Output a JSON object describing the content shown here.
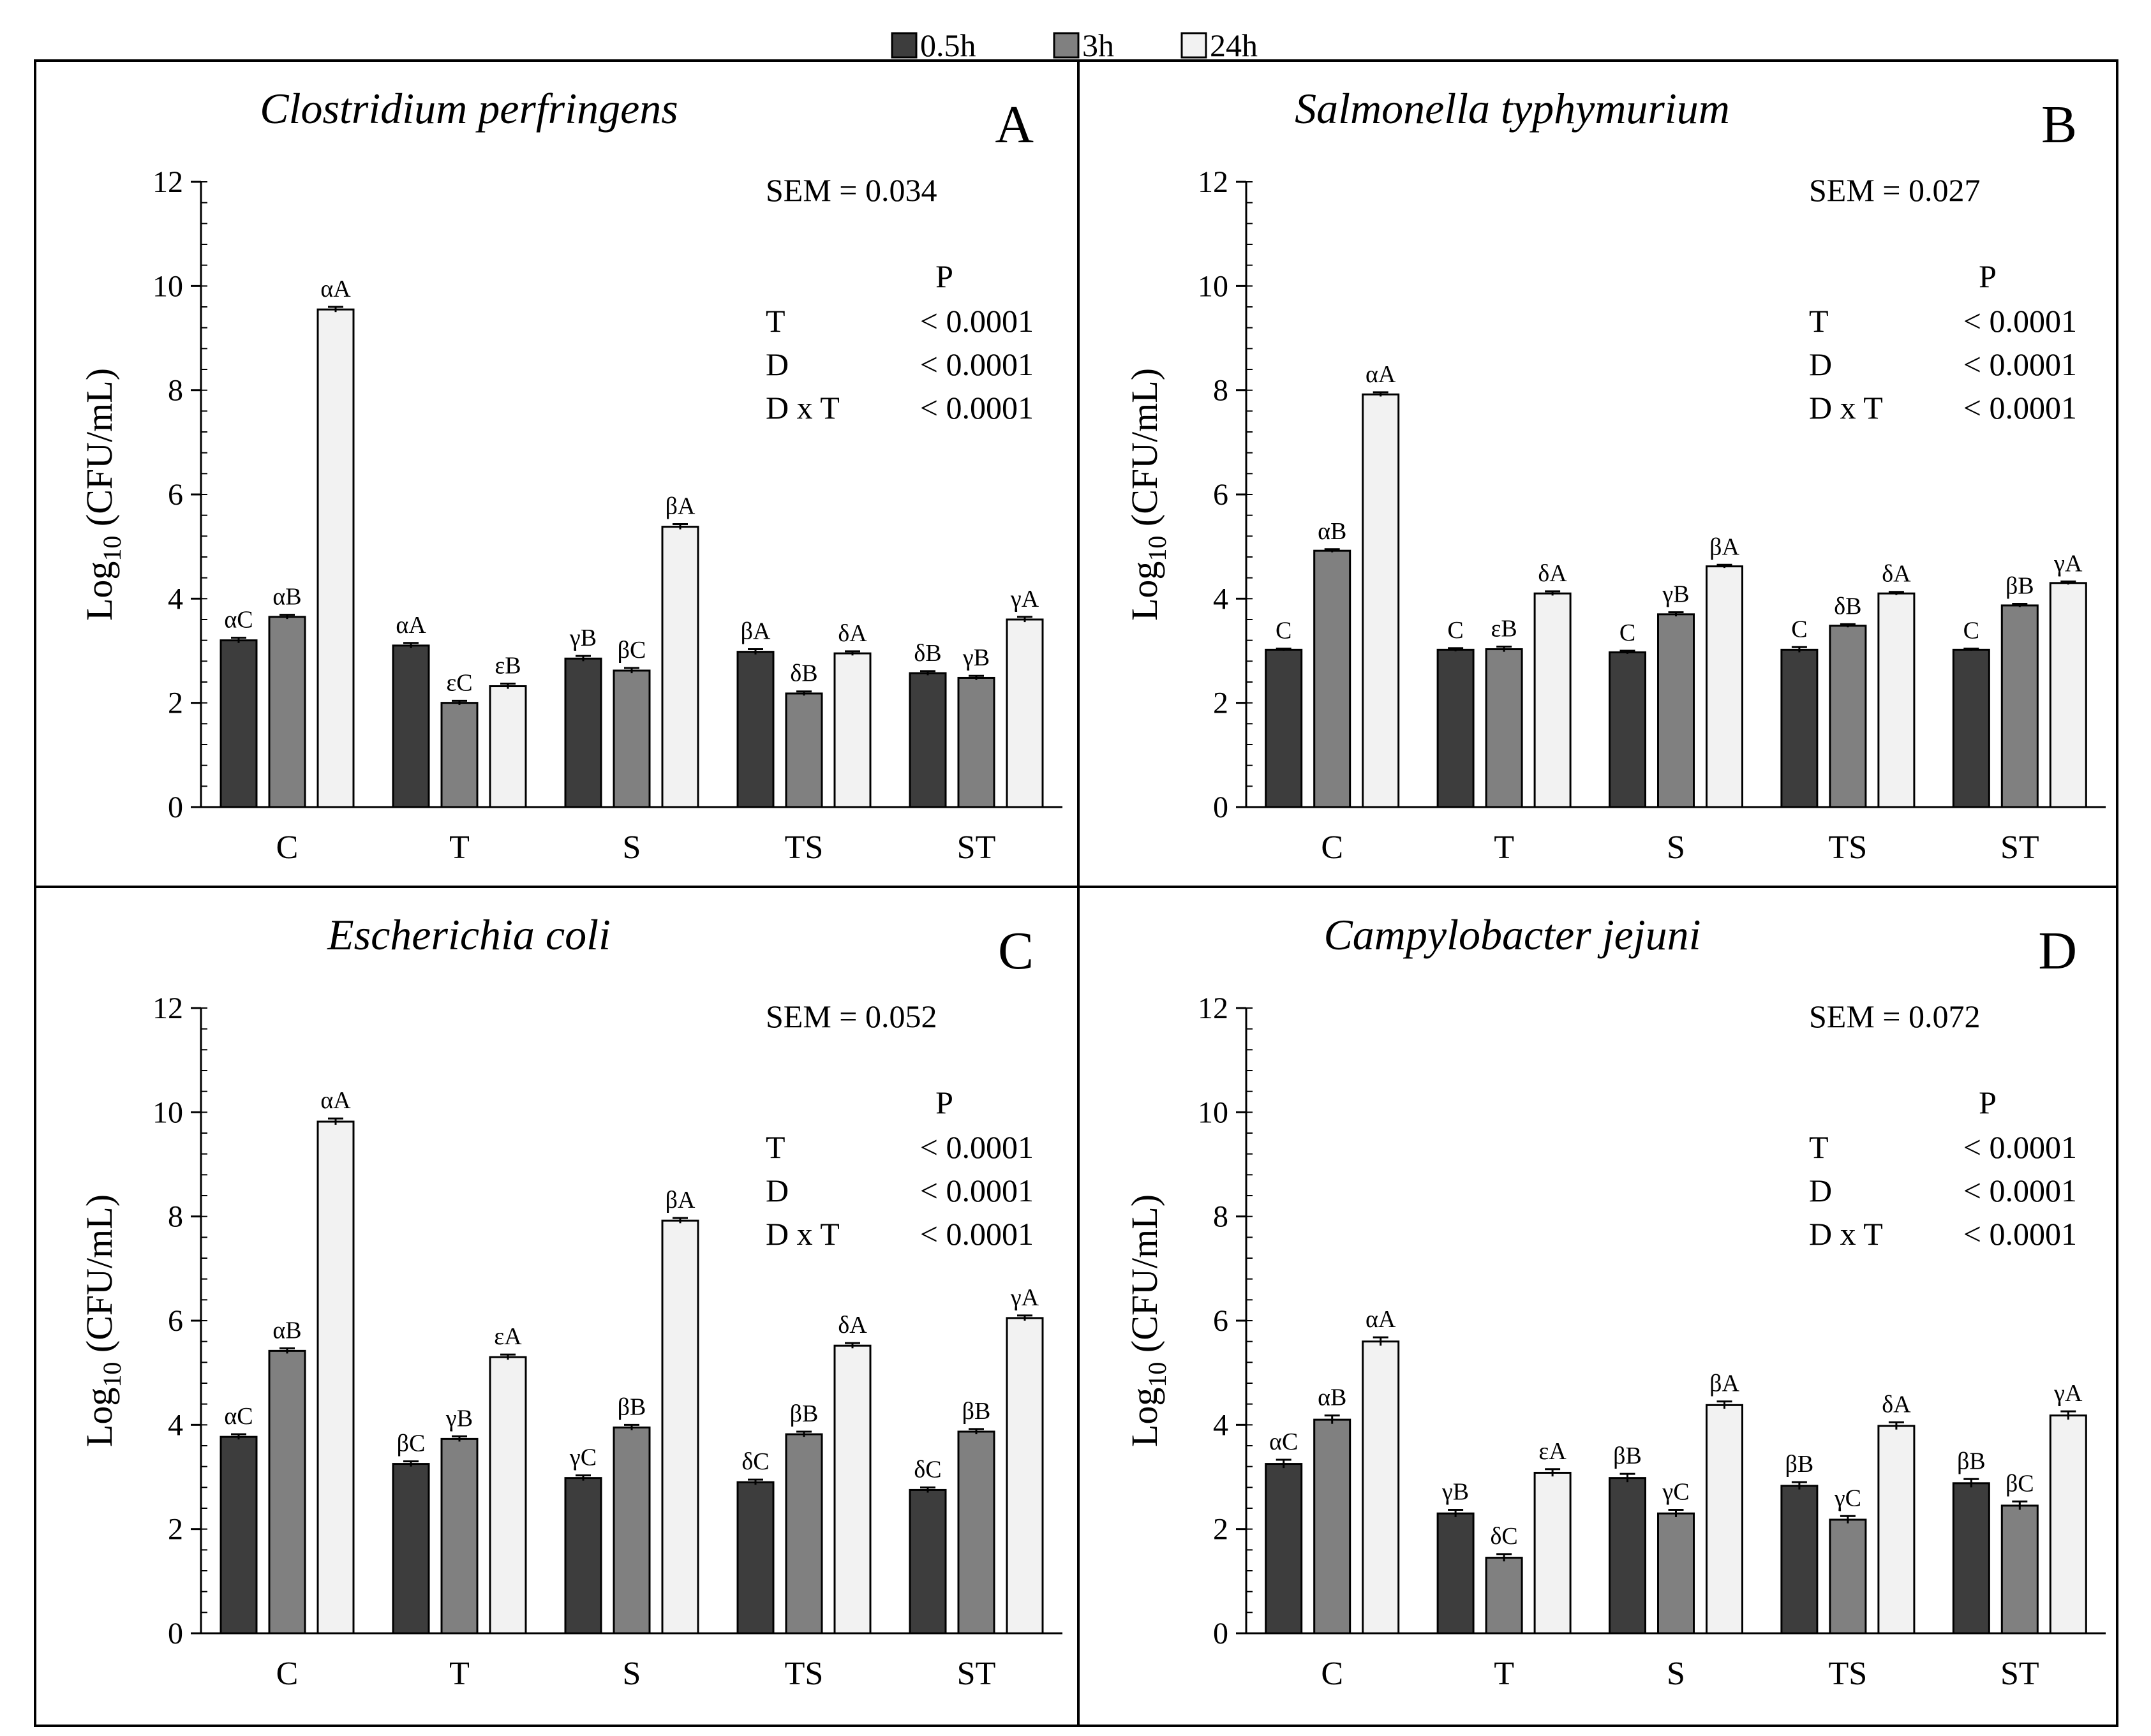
{
  "colors": {
    "0.5h": "#3d3d3d",
    "3h": "#808080",
    "24h": "#f2f2f2",
    "stroke": "#000000"
  },
  "legend": [
    {
      "key": "0.5h",
      "label": "0.5h"
    },
    {
      "key": "3h",
      "label": "3h"
    },
    {
      "key": "24h",
      "label": "24h"
    }
  ],
  "y_axis": {
    "prefix": "Log",
    "subscript": "10",
    "suffix": " (CFU/mL)"
  },
  "chart_data": [
    {
      "type": "bar",
      "panel": "A",
      "title": "Clostridium perfringens",
      "categories": [
        "C",
        "T",
        "S",
        "TS",
        "ST"
      ],
      "series": [
        {
          "name": "0.5h",
          "values": [
            3.2,
            3.1,
            2.85,
            2.98,
            2.57
          ],
          "errors": [
            0.05,
            0.05,
            0.05,
            0.05,
            0.04
          ],
          "labels": [
            "αC",
            "αA",
            "γB",
            "βA",
            "δB"
          ]
        },
        {
          "name": "3h",
          "values": [
            3.65,
            2.0,
            2.62,
            2.18,
            2.48
          ],
          "errors": [
            0.04,
            0.04,
            0.05,
            0.04,
            0.04
          ],
          "labels": [
            "αB",
            "εC",
            "βC",
            "δB",
            "γB"
          ]
        },
        {
          "name": "24h",
          "values": [
            9.55,
            2.32,
            5.38,
            2.95,
            3.6
          ],
          "errors": [
            0.05,
            0.05,
            0.05,
            0.04,
            0.05
          ],
          "labels": [
            "αA",
            "εB",
            "βA",
            "δA",
            "γA"
          ]
        }
      ],
      "ylim": [
        0,
        12
      ],
      "yticks": [
        0,
        2,
        4,
        6,
        8,
        10,
        12
      ],
      "stats": {
        "sem": "SEM = 0.034",
        "p_header": "P",
        "rows": [
          [
            "T",
            "< 0.0001"
          ],
          [
            "D",
            "< 0.0001"
          ],
          [
            "D x T",
            "< 0.0001"
          ]
        ]
      }
    },
    {
      "type": "bar",
      "panel": "B",
      "title": "Salmonella typhymurium",
      "categories": [
        "C",
        "T",
        "S",
        "TS",
        "ST"
      ],
      "series": [
        {
          "name": "0.5h",
          "values": [
            3.02,
            3.02,
            2.97,
            3.02,
            3.02
          ],
          "errors": [
            0.02,
            0.03,
            0.03,
            0.05,
            0.02
          ],
          "labels": [
            "C",
            "C",
            "C",
            "C",
            "C"
          ]
        },
        {
          "name": "3h",
          "values": [
            4.92,
            3.03,
            3.7,
            3.48,
            3.87
          ],
          "errors": [
            0.03,
            0.05,
            0.04,
            0.03,
            0.03
          ],
          "labels": [
            "αB",
            "εB",
            "γB",
            "δB",
            "βB"
          ]
        },
        {
          "name": "24h",
          "values": [
            7.92,
            4.1,
            4.62,
            4.1,
            4.3
          ],
          "errors": [
            0.04,
            0.04,
            0.03,
            0.03,
            0.03
          ],
          "labels": [
            "αA",
            "δA",
            "βA",
            "δA",
            "γA"
          ]
        }
      ],
      "ylim": [
        0,
        12
      ],
      "yticks": [
        0,
        2,
        4,
        6,
        8,
        10,
        12
      ],
      "stats": {
        "sem": "SEM = 0.027",
        "p_header": "P",
        "rows": [
          [
            "T",
            "< 0.0001"
          ],
          [
            "D",
            "< 0.0001"
          ],
          [
            "D x T",
            "< 0.0001"
          ]
        ]
      }
    },
    {
      "type": "bar",
      "panel": "C",
      "title": "Escherichia coli",
      "categories": [
        "C",
        "T",
        "S",
        "TS",
        "ST"
      ],
      "series": [
        {
          "name": "0.5h",
          "values": [
            3.77,
            3.25,
            2.98,
            2.9,
            2.75
          ],
          "errors": [
            0.05,
            0.05,
            0.05,
            0.05,
            0.05
          ],
          "labels": [
            "αC",
            "βC",
            "γC",
            "δC",
            "δC"
          ]
        },
        {
          "name": "3h",
          "values": [
            5.42,
            3.73,
            3.95,
            3.82,
            3.87
          ],
          "errors": [
            0.05,
            0.05,
            0.05,
            0.05,
            0.05
          ],
          "labels": [
            "αB",
            "γB",
            "βB",
            "βB",
            "βB"
          ]
        },
        {
          "name": "24h",
          "values": [
            9.82,
            5.3,
            7.92,
            5.52,
            6.05
          ],
          "errors": [
            0.06,
            0.05,
            0.05,
            0.05,
            0.05
          ],
          "labels": [
            "αA",
            "εA",
            "βA",
            "δA",
            "γA"
          ]
        }
      ],
      "ylim": [
        0,
        12
      ],
      "yticks": [
        0,
        2,
        4,
        6,
        8,
        10,
        12
      ],
      "stats": {
        "sem": "SEM = 0.052",
        "p_header": "P",
        "rows": [
          [
            "T",
            "< 0.0001"
          ],
          [
            "D",
            "< 0.0001"
          ],
          [
            "D x T",
            "< 0.0001"
          ]
        ]
      }
    },
    {
      "type": "bar",
      "panel": "D",
      "title": "Campylobacter jejuni",
      "categories": [
        "C",
        "T",
        "S",
        "TS",
        "ST"
      ],
      "series": [
        {
          "name": "0.5h",
          "values": [
            3.25,
            2.3,
            2.98,
            2.83,
            2.88
          ],
          "errors": [
            0.08,
            0.07,
            0.08,
            0.07,
            0.08
          ],
          "labels": [
            "αC",
            "γB",
            "βB",
            "βB",
            "βB"
          ]
        },
        {
          "name": "3h",
          "values": [
            4.1,
            1.45,
            2.3,
            2.18,
            2.45
          ],
          "errors": [
            0.08,
            0.07,
            0.07,
            0.07,
            0.08
          ],
          "labels": [
            "αB",
            "δC",
            "γC",
            "γC",
            "βC"
          ]
        },
        {
          "name": "24h",
          "values": [
            5.6,
            3.08,
            4.38,
            3.98,
            4.18
          ],
          "errors": [
            0.08,
            0.07,
            0.07,
            0.07,
            0.08
          ],
          "labels": [
            "αA",
            "εA",
            "βA",
            "δA",
            "γA"
          ]
        }
      ],
      "ylim": [
        0,
        12
      ],
      "yticks": [
        0,
        2,
        4,
        6,
        8,
        10,
        12
      ],
      "stats": {
        "sem": "SEM = 0.072",
        "p_header": "P",
        "rows": [
          [
            "T",
            "< 0.0001"
          ],
          [
            "D",
            "< 0.0001"
          ],
          [
            "D x T",
            "< 0.0001"
          ]
        ]
      }
    }
  ]
}
